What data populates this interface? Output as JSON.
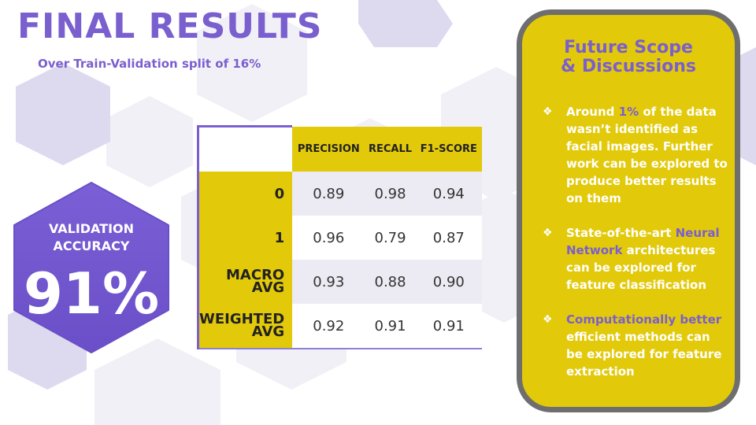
{
  "slide": {
    "title": "FINAL RESULTS",
    "subtitle": "Over Train-Validation split of 16%"
  },
  "badge": {
    "label_line1": "VALIDATION",
    "label_line2": "ACCURACY",
    "value": "91%"
  },
  "table": {
    "columns": [
      "PRECISION",
      "RECALL",
      "F1-SCORE"
    ],
    "rows": [
      {
        "label_line1": "0",
        "label_line2": "",
        "values": [
          "0.89",
          "0.98",
          "0.94"
        ]
      },
      {
        "label_line1": "1",
        "label_line2": "",
        "values": [
          "0.96",
          "0.79",
          "0.87"
        ]
      },
      {
        "label_line1": "MACRO",
        "label_line2": "AVG",
        "values": [
          "0.93",
          "0.88",
          "0.90"
        ]
      },
      {
        "label_line1": "WEIGHTED",
        "label_line2": "AVG",
        "values": [
          "0.92",
          "0.91",
          "0.91"
        ]
      }
    ]
  },
  "panel": {
    "title_line1": "Future Scope",
    "title_line2": "& Discussions",
    "bullet_icon": "diamond-bullet-icon",
    "bullets": [
      {
        "pre": "Around ",
        "highlight": "1%",
        "post": " of the data wasn’t identified as facial images. Further work can be explored to produce better results on them"
      },
      {
        "pre": "State-of-the-art ",
        "highlight": "Neural Network",
        "post": " architectures can be explored for feature classification"
      },
      {
        "pre": "",
        "highlight": "Computationally better",
        "post": " efficient methods can be explored for feature extraction"
      }
    ]
  },
  "colors": {
    "accent_purple": "#7a5fcf",
    "accent_yellow": "#e2c90a",
    "panel_border": "#6e6e6e"
  }
}
